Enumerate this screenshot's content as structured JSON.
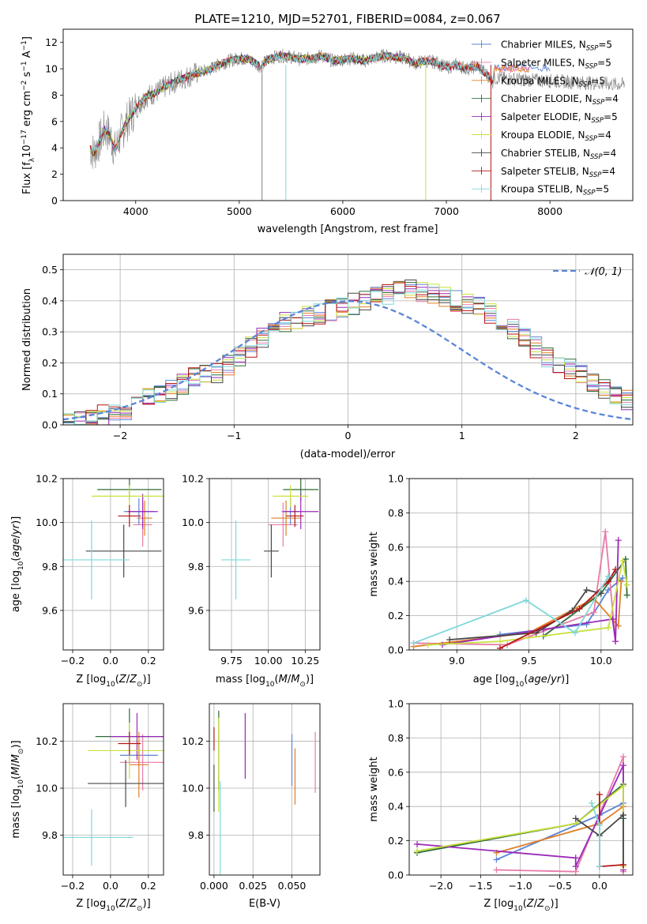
{
  "figure": {
    "title": "PLATE=1210, MJD=52701, FIBERID=0084, z=0.067"
  },
  "colors": {
    "cmiles": "#5b85d8",
    "smiles": "#e87aa8",
    "kmiles": "#e07f27",
    "celodie": "#2e6b3a",
    "selodie": "#9a29b8",
    "kelodie": "#c8e03c",
    "cstelib": "#484848",
    "sstelib": "#b41414",
    "kstelib": "#7fd8da",
    "spectrum": "#808080",
    "grid": "#b0b0b0"
  },
  "chart_data": [
    {
      "id": "spectrum",
      "type": "line",
      "xlabel": "wavelength [Angstrom, rest frame]",
      "ylabel": "Flux [f_λ 10^-17 erg cm^-2 s^-1 A^-1]",
      "xlim": [
        3300,
        8800
      ],
      "ylim": [
        0,
        13
      ],
      "xticks": [
        4000,
        5000,
        6000,
        7000,
        8000
      ],
      "yticks": [
        0,
        2,
        4,
        6,
        8,
        10,
        12
      ],
      "grid": false,
      "legend_position": "right",
      "x": [
        3560,
        3600,
        3650,
        3700,
        3750,
        3800,
        3850,
        3900,
        3950,
        4000,
        4100,
        4200,
        4300,
        4400,
        4500,
        4600,
        4700,
        4800,
        4900,
        5000,
        5100,
        5200,
        5300,
        5400,
        5500,
        5600,
        5700,
        5800,
        5900,
        6000,
        6100,
        6200,
        6300,
        6400,
        6500,
        6600,
        6700,
        6800,
        6900,
        7000,
        7100,
        7200,
        7300,
        7400,
        7450
      ],
      "model_flux": [
        4.0,
        3.6,
        4.5,
        5.4,
        5.0,
        3.8,
        4.9,
        5.8,
        6.4,
        7.0,
        7.9,
        8.2,
        8.7,
        9.1,
        9.4,
        9.7,
        9.9,
        10.3,
        10.6,
        10.8,
        10.7,
        10.2,
        10.8,
        11.0,
        10.9,
        10.7,
        10.8,
        11.0,
        10.6,
        10.7,
        10.8,
        10.6,
        10.8,
        11.0,
        10.9,
        10.8,
        10.4,
        10.6,
        10.5,
        10.1,
        10.3,
        10.0,
        10.2,
        9.5,
        9.0
      ],
      "series": [
        {
          "name": "Chabrier MILES, N_SSP=5",
          "label_base": "Chabrier MILES, N",
          "label_sub": "SSP",
          "label_tail": "=5",
          "color_key": "cmiles",
          "x_end": 8000,
          "y_end": 10.1
        },
        {
          "name": "Salpeter MILES, N_SSP=5",
          "label_base": "Salpeter MILES, N",
          "label_sub": "SSP",
          "label_tail": "=5",
          "color_key": "smiles",
          "x_end": 7800,
          "y_end": 10.0
        },
        {
          "name": "Kroupa MILES, N_SSP=5",
          "label_base": "Kroupa MILES, N",
          "label_sub": "SSP",
          "label_tail": "=5",
          "color_key": "kmiles",
          "x_end": 7800,
          "y_end": 10.0
        },
        {
          "name": "Chabrier ELODIE, N_SSP=4",
          "label_base": "Chabrier ELODIE, N",
          "label_sub": "SSP",
          "label_tail": "=4",
          "color_key": "celodie",
          "x_end": 6800,
          "y_end": 10.5
        },
        {
          "name": "Salpeter ELODIE, N_SSP=5",
          "label_base": "Salpeter ELODIE, N",
          "label_sub": "SSP",
          "label_tail": "=5",
          "color_key": "selodie",
          "x_end": 6800,
          "y_end": 10.5
        },
        {
          "name": "Kroupa ELODIE, N_SSP=4",
          "label_base": "Kroupa ELODIE, N",
          "label_sub": "SSP",
          "label_tail": "=4",
          "color_key": "kelodie",
          "x_end": 6800,
          "y_end": 10.5
        },
        {
          "name": "Chabrier STELIB, N_SSP=4",
          "label_base": "Chabrier STELIB, N",
          "label_sub": "SSP",
          "label_tail": "=4",
          "color_key": "cstelib",
          "x_end": 7450,
          "y_end": 9.8
        },
        {
          "name": "Salpeter STELIB, N_SSP=4",
          "label_base": "Salpeter STELIB, N",
          "label_sub": "SSP",
          "label_tail": "=4",
          "color_key": "sstelib",
          "x_end": 7450,
          "y_end": 9.8
        },
        {
          "name": "Kroupa STELIB, N_SSP=5",
          "label_base": "Kroupa STELIB, N",
          "label_sub": "SSP",
          "label_tail": "=5",
          "color_key": "kstelib",
          "x_end": 7450,
          "y_end": 9.8
        }
      ],
      "drops": [
        {
          "x": 5220,
          "color_key": "spectrum"
        },
        {
          "x": 5450,
          "color_key": "kstelib"
        },
        {
          "x": 6800,
          "color_key": "kelodie"
        },
        {
          "x": 7430,
          "color_key": "sstelib"
        }
      ]
    },
    {
      "id": "residuals",
      "type": "area",
      "xlabel": "(data-model)/error",
      "ylabel": "Normed distribution",
      "xlim": [
        -2.5,
        2.5
      ],
      "ylim": [
        0,
        0.55
      ],
      "xticks": [
        -2,
        -1,
        0,
        1,
        2
      ],
      "yticks": [
        0.0,
        0.1,
        0.2,
        0.3,
        0.4,
        0.5
      ],
      "grid": true,
      "legend_position": "top-right",
      "legend_label": "𝒩(0, 1)",
      "reference": "gaussian N(0,1)",
      "bin_width": 0.1,
      "histogram_base": [
        0.01,
        0.015,
        0.02,
        0.03,
        0.04,
        0.05,
        0.07,
        0.09,
        0.1,
        0.11,
        0.13,
        0.15,
        0.16,
        0.17,
        0.19,
        0.22,
        0.25,
        0.28,
        0.31,
        0.33,
        0.34,
        0.35,
        0.36,
        0.37,
        0.38,
        0.39,
        0.4,
        0.41,
        0.42,
        0.43,
        0.44,
        0.43,
        0.42,
        0.41,
        0.4,
        0.39,
        0.38,
        0.36,
        0.33,
        0.31,
        0.28,
        0.25,
        0.22,
        0.2,
        0.18,
        0.16,
        0.14,
        0.12,
        0.1,
        0.08,
        0.07,
        0.06,
        0.05,
        0.04,
        0.03,
        0.03,
        0.02,
        0.02,
        0.02,
        0.02
      ]
    },
    {
      "id": "age_vs_z",
      "type": "scatter",
      "xlabel": "Z [log10(Z/Z⊙)]",
      "ylabel": "age [log10(age/yr)]",
      "xlim": [
        -0.25,
        0.28
      ],
      "ylim": [
        9.42,
        10.2
      ],
      "xticks": [
        -0.2,
        0.0,
        0.2
      ],
      "yticks": [
        9.6,
        9.8,
        10.0,
        10.2
      ],
      "grid": true,
      "points": [
        {
          "color_key": "cmiles",
          "x": 0.15,
          "xerr": 0.08,
          "y": 10.05,
          "yerr": 0.06
        },
        {
          "color_key": "smiles",
          "x": 0.17,
          "xerr": 0.05,
          "y": 9.99,
          "yerr": 0.1
        },
        {
          "color_key": "kmiles",
          "x": 0.18,
          "xerr": 0.04,
          "y": 10.02,
          "yerr": 0.08
        },
        {
          "color_key": "celodie",
          "x": 0.1,
          "xerr": 0.17,
          "y": 10.15,
          "yerr": 0.05
        },
        {
          "color_key": "selodie",
          "x": 0.17,
          "xerr": 0.08,
          "y": 10.05,
          "yerr": 0.08
        },
        {
          "color_key": "kelodie",
          "x": 0.1,
          "xerr": 0.2,
          "y": 10.12,
          "yerr": 0.05
        },
        {
          "color_key": "cstelib",
          "x": 0.07,
          "xerr": 0.2,
          "y": 9.87,
          "yerr": 0.12
        },
        {
          "color_key": "sstelib",
          "x": 0.1,
          "xerr": 0.06,
          "y": 10.03,
          "yerr": 0.05
        },
        {
          "color_key": "kstelib",
          "x": -0.1,
          "xerr": 0.2,
          "y": 9.83,
          "yerr": 0.18
        }
      ]
    },
    {
      "id": "age_vs_mass",
      "type": "scatter",
      "xlabel": "mass [log10(M/M⊙)]",
      "ylabel": "",
      "xlim": [
        9.6,
        10.35
      ],
      "ylim": [
        9.42,
        10.2
      ],
      "xticks": [
        9.75,
        10.0,
        10.25
      ],
      "xticklabels": [
        "9.75",
        "10.00",
        "10.25"
      ],
      "yticks": [
        9.6,
        9.8,
        10.0,
        10.2
      ],
      "grid": true,
      "points": [
        {
          "color_key": "cmiles",
          "x": 10.15,
          "xerr": 0.06,
          "y": 10.05,
          "yerr": 0.06
        },
        {
          "color_key": "smiles",
          "x": 10.1,
          "xerr": 0.1,
          "y": 9.99,
          "yerr": 0.1
        },
        {
          "color_key": "kmiles",
          "x": 10.12,
          "xerr": 0.1,
          "y": 10.02,
          "yerr": 0.08
        },
        {
          "color_key": "celodie",
          "x": 10.22,
          "xerr": 0.12,
          "y": 10.15,
          "yerr": 0.05
        },
        {
          "color_key": "selodie",
          "x": 10.22,
          "xerr": 0.12,
          "y": 10.05,
          "yerr": 0.08
        },
        {
          "color_key": "kelodie",
          "x": 10.15,
          "xerr": 0.12,
          "y": 10.12,
          "yerr": 0.05
        },
        {
          "color_key": "cstelib",
          "x": 10.02,
          "xerr": 0.05,
          "y": 9.87,
          "yerr": 0.12
        },
        {
          "color_key": "sstelib",
          "x": 10.18,
          "xerr": 0.06,
          "y": 10.03,
          "yerr": 0.05
        },
        {
          "color_key": "kstelib",
          "x": 9.78,
          "xerr": 0.1,
          "y": 9.83,
          "yerr": 0.18
        }
      ]
    },
    {
      "id": "massweight_vs_age",
      "type": "line",
      "xlabel": "age [log10(age/yr)]",
      "ylabel": "mass weight",
      "xlim": [
        8.67,
        10.22
      ],
      "ylim": [
        0,
        1.0
      ],
      "xticks": [
        9.0,
        9.5,
        10.0
      ],
      "xticklabels": [
        "9.0",
        "9.5",
        "10.0"
      ],
      "yticks": [
        0.0,
        0.2,
        0.4,
        0.6,
        0.8,
        1.0
      ],
      "grid": true,
      "series": [
        {
          "color_key": "cmiles",
          "x": [
            9.3,
            9.9,
            10.05,
            10.15
          ],
          "y": [
            0.09,
            0.15,
            0.35,
            0.42
          ]
        },
        {
          "color_key": "smiles",
          "x": [
            8.7,
            9.35,
            9.95,
            10.03,
            10.1
          ],
          "y": [
            0.04,
            0.03,
            0.22,
            0.69,
            0.05
          ]
        },
        {
          "color_key": "kmiles",
          "x": [
            8.7,
            9.5,
            9.95,
            10.12,
            10.14
          ],
          "y": [
            0.02,
            0.1,
            0.3,
            0.14,
            0.4
          ]
        },
        {
          "color_key": "celodie",
          "x": [
            9.6,
            10.0,
            10.17,
            10.18
          ],
          "y": [
            0.08,
            0.33,
            0.53,
            0.32
          ]
        },
        {
          "color_key": "selodie",
          "x": [
            8.9,
            9.6,
            10.08,
            10.1,
            10.12
          ],
          "y": [
            0.03,
            0.12,
            0.18,
            0.05,
            0.64
          ]
        },
        {
          "color_key": "kelodie",
          "x": [
            8.8,
            9.3,
            10.05,
            10.15,
            10.18
          ],
          "y": [
            0.03,
            0.05,
            0.13,
            0.52,
            0.38
          ]
        },
        {
          "color_key": "cstelib",
          "x": [
            8.95,
            9.55,
            9.8,
            9.9,
            10.0
          ],
          "y": [
            0.06,
            0.1,
            0.23,
            0.35,
            0.33
          ]
        },
        {
          "color_key": "sstelib",
          "x": [
            9.3,
            9.85,
            10.05,
            10.1
          ],
          "y": [
            0.01,
            0.24,
            0.4,
            0.47
          ]
        },
        {
          "color_key": "kstelib",
          "x": [
            8.7,
            9.48,
            9.82,
            10.05
          ],
          "y": [
            0.04,
            0.29,
            0.1,
            0.43
          ]
        }
      ]
    },
    {
      "id": "mass_vs_z",
      "type": "scatter",
      "xlabel": "Z [log10(Z/Z⊙)]",
      "ylabel": "mass [log10(M/M⊙)]",
      "xlim": [
        -0.25,
        0.28
      ],
      "ylim": [
        9.63,
        10.36
      ],
      "xticks": [
        -0.2,
        0.0,
        0.2
      ],
      "yticks": [
        9.8,
        10.0,
        10.2
      ],
      "grid": true,
      "points": [
        {
          "color_key": "cmiles",
          "x": 0.15,
          "xerr": 0.1,
          "y": 10.14,
          "yerr": 0.05
        },
        {
          "color_key": "smiles",
          "x": 0.17,
          "xerr": 0.12,
          "y": 10.11,
          "yerr": 0.12
        },
        {
          "color_key": "kmiles",
          "x": 0.15,
          "xerr": 0.05,
          "y": 10.1,
          "yerr": 0.14
        },
        {
          "color_key": "celodie",
          "x": 0.1,
          "xerr": 0.18,
          "y": 10.22,
          "yerr": 0.12
        },
        {
          "color_key": "selodie",
          "x": 0.14,
          "xerr": 0.14,
          "y": 10.22,
          "yerr": 0.1
        },
        {
          "color_key": "kelodie",
          "x": 0.1,
          "xerr": 0.22,
          "y": 10.16,
          "yerr": 0.12
        },
        {
          "color_key": "cstelib",
          "x": 0.08,
          "xerr": 0.2,
          "y": 10.02,
          "yerr": 0.1
        },
        {
          "color_key": "sstelib",
          "x": 0.1,
          "xerr": 0.06,
          "y": 10.19,
          "yerr": 0.05
        },
        {
          "color_key": "kstelib",
          "x": -0.1,
          "xerr": 0.22,
          "y": 9.79,
          "yerr": 0.12
        }
      ]
    },
    {
      "id": "ebv",
      "type": "scatter",
      "xlabel": "E(B-V)",
      "ylabel": "",
      "xlim": [
        -0.003,
        0.068
      ],
      "ylim": [
        9.63,
        10.36
      ],
      "xticks": [
        0.0,
        0.025,
        0.05
      ],
      "xticklabels": [
        "0.000",
        "0.025",
        "0.050"
      ],
      "yticks": [
        9.8,
        10.0,
        10.2
      ],
      "grid": true,
      "points": [
        {
          "color_key": "cmiles",
          "x": 0.05,
          "y": 10.12,
          "yerr": 0.11
        },
        {
          "color_key": "smiles",
          "x": 0.065,
          "y": 10.11,
          "yerr": 0.13
        },
        {
          "color_key": "kmiles",
          "x": 0.052,
          "y": 10.05,
          "yerr": 0.12
        },
        {
          "color_key": "celodie",
          "x": 0.003,
          "y": 10.16,
          "yerr": 0.17
        },
        {
          "color_key": "selodie",
          "x": 0.02,
          "y": 10.18,
          "yerr": 0.14
        },
        {
          "color_key": "kelodie",
          "x": 0.003,
          "y": 10.1,
          "yerr": 0.2
        },
        {
          "color_key": "cstelib",
          "x": 0.0,
          "y": 10.0,
          "yerr": 0.1
        },
        {
          "color_key": "sstelib",
          "x": 0.0,
          "y": 10.21,
          "yerr": 0.05
        },
        {
          "color_key": "kstelib",
          "x": 0.004,
          "y": 9.83,
          "yerr": 0.2
        }
      ]
    },
    {
      "id": "massweight_vs_z",
      "type": "line",
      "xlabel": "Z [log10(Z/Z⊙)]",
      "ylabel": "mass weight",
      "xlim": [
        -2.4,
        0.42
      ],
      "ylim": [
        0,
        1.0
      ],
      "xticks": [
        -2.0,
        -1.5,
        -1.0,
        -0.5,
        0.0
      ],
      "xticklabels": [
        "−2.0",
        "−1.5",
        "−1.0",
        "−0.5",
        "0.0"
      ],
      "yticks": [
        0.0,
        0.2,
        0.4,
        0.6,
        0.8,
        1.0
      ],
      "grid": true,
      "series": [
        {
          "color_key": "cmiles",
          "x": [
            -1.3,
            0.0,
            0.3
          ],
          "y": [
            0.09,
            0.35,
            0.42
          ]
        },
        {
          "color_key": "smiles",
          "x": [
            -1.3,
            -0.3,
            0.3,
            0.3
          ],
          "y": [
            0.03,
            0.02,
            0.69,
            0.02
          ]
        },
        {
          "color_key": "kmiles",
          "x": [
            -1.3,
            0.0,
            0.3
          ],
          "y": [
            0.13,
            0.3,
            0.4
          ]
        },
        {
          "color_key": "celodie",
          "x": [
            -2.3,
            -0.3,
            0.3,
            0.3
          ],
          "y": [
            0.13,
            0.3,
            0.53,
            0.33
          ]
        },
        {
          "color_key": "selodie",
          "x": [
            -2.3,
            -0.3,
            -0.3,
            0.3,
            0.3
          ],
          "y": [
            0.18,
            0.1,
            0.05,
            0.64,
            0.03
          ]
        },
        {
          "color_key": "kelodie",
          "x": [
            -2.3,
            -0.3,
            0.3,
            0.3
          ],
          "y": [
            0.14,
            0.3,
            0.52,
            0.05
          ]
        },
        {
          "color_key": "cstelib",
          "x": [
            -0.3,
            0.0,
            0.3,
            0.3
          ],
          "y": [
            0.33,
            0.23,
            0.35,
            0.06
          ]
        },
        {
          "color_key": "sstelib",
          "x": [
            0.0,
            0.0,
            0.3
          ],
          "y": [
            0.47,
            0.05,
            0.06
          ]
        },
        {
          "color_key": "kstelib",
          "x": [
            -0.1,
            0.0,
            0.0
          ],
          "y": [
            0.42,
            0.29,
            0.05
          ]
        }
      ]
    }
  ]
}
